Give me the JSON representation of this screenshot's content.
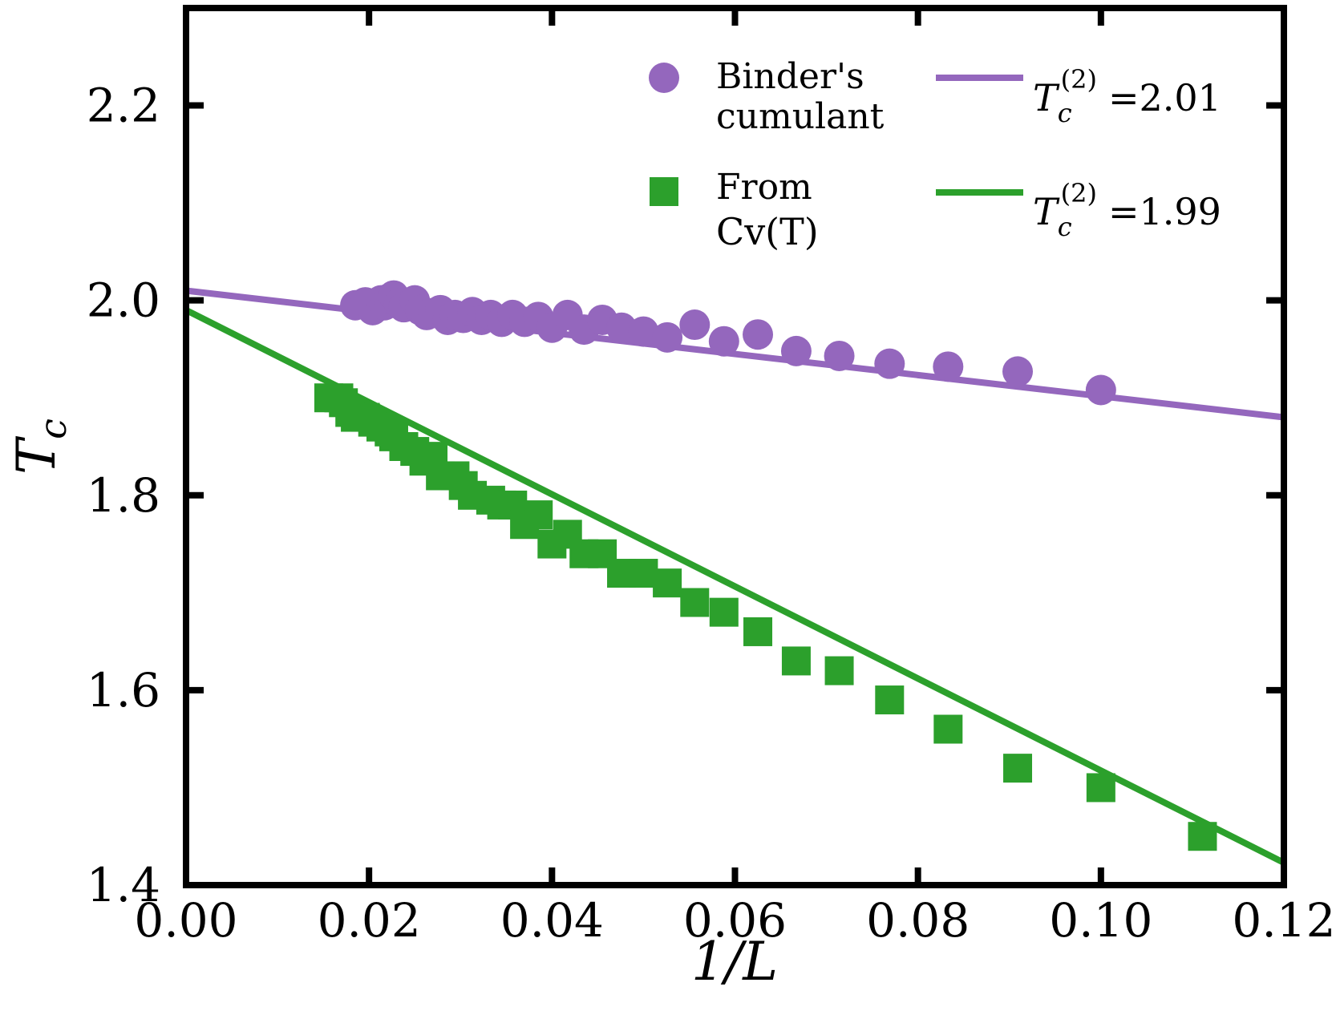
{
  "chart_data": {
    "type": "scatter",
    "xlabel": "1/L",
    "ylabel": "T_c",
    "xlim": [
      0.0,
      0.12
    ],
    "ylim": [
      1.4,
      2.3
    ],
    "x_ticks": [
      "0.00",
      "0.02",
      "0.04",
      "0.06",
      "0.08",
      "0.10",
      "0.12"
    ],
    "y_ticks": [
      "1.4",
      "1.6",
      "1.8",
      "2.0",
      "2.2"
    ],
    "grid": false,
    "legend_placement": "top-right",
    "series": [
      {
        "name_line1": "Binder's",
        "name_line2": "cumulant",
        "marker": "circle",
        "color": "#9467bd",
        "x": [
          0.0185,
          0.0196,
          0.0204,
          0.0213,
          0.0217,
          0.0222,
          0.0227,
          0.0233,
          0.0238,
          0.025,
          0.0256,
          0.0263,
          0.027,
          0.0278,
          0.0286,
          0.0294,
          0.0303,
          0.0313,
          0.0323,
          0.0333,
          0.0345,
          0.0357,
          0.037,
          0.0385,
          0.04,
          0.0417,
          0.0435,
          0.0455,
          0.0476,
          0.05,
          0.0526,
          0.0556,
          0.0588,
          0.0625,
          0.0667,
          0.0714,
          0.0769,
          0.0833,
          0.0909,
          0.1
        ],
        "y": [
          1.995,
          1.998,
          1.99,
          2.0,
          1.995,
          2.002,
          2.005,
          1.997,
          1.993,
          2.0,
          1.99,
          1.985,
          1.987,
          1.99,
          1.98,
          1.985,
          1.982,
          1.988,
          1.98,
          1.985,
          1.978,
          1.985,
          1.978,
          1.983,
          1.972,
          1.985,
          1.97,
          1.98,
          1.972,
          1.968,
          1.962,
          1.975,
          1.958,
          1.965,
          1.948,
          1.943,
          1.935,
          1.932,
          1.927,
          1.908
        ]
      },
      {
        "name_line1": "From",
        "name_line2": "Cv(T)",
        "marker": "square",
        "color": "#2ca02c",
        "x": [
          0.0156,
          0.0167,
          0.0172,
          0.0179,
          0.0185,
          0.0196,
          0.0204,
          0.0213,
          0.0222,
          0.0227,
          0.0238,
          0.025,
          0.026,
          0.027,
          0.0278,
          0.0294,
          0.0303,
          0.0313,
          0.0333,
          0.0345,
          0.0357,
          0.037,
          0.0385,
          0.04,
          0.0417,
          0.0435,
          0.0455,
          0.0476,
          0.05,
          0.0526,
          0.0556,
          0.0588,
          0.0625,
          0.0667,
          0.0714,
          0.0769,
          0.0833,
          0.0909,
          0.1,
          0.1111
        ],
        "y": [
          1.9,
          1.9,
          1.895,
          1.885,
          1.88,
          1.88,
          1.875,
          1.87,
          1.865,
          1.86,
          1.85,
          1.845,
          1.835,
          1.84,
          1.82,
          1.82,
          1.81,
          1.8,
          1.795,
          1.79,
          1.79,
          1.77,
          1.78,
          1.75,
          1.76,
          1.74,
          1.74,
          1.72,
          1.72,
          1.71,
          1.69,
          1.68,
          1.66,
          1.63,
          1.62,
          1.59,
          1.56,
          1.52,
          1.5,
          1.45
        ]
      }
    ],
    "fit_lines": [
      {
        "color": "#9467bd",
        "x": [
          0.0,
          0.12
        ],
        "y": [
          2.01,
          1.88
        ],
        "label_value": "=2.01"
      },
      {
        "color": "#2ca02c",
        "x": [
          0.0,
          0.12
        ],
        "y": [
          1.99,
          1.423
        ],
        "label_value": "=1.99"
      }
    ]
  }
}
